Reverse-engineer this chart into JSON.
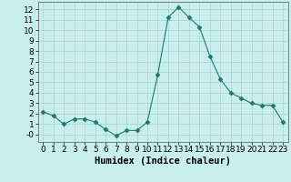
{
  "x": [
    0,
    1,
    2,
    3,
    4,
    5,
    6,
    7,
    8,
    9,
    10,
    11,
    12,
    13,
    14,
    15,
    16,
    17,
    18,
    19,
    20,
    21,
    22,
    23
  ],
  "y": [
    2.2,
    1.8,
    1.0,
    1.5,
    1.5,
    1.2,
    0.5,
    -0.1,
    0.4,
    0.4,
    1.2,
    5.7,
    11.2,
    12.2,
    11.2,
    10.3,
    7.5,
    5.3,
    4.0,
    3.5,
    3.0,
    2.8,
    2.8,
    1.2
  ],
  "xlabel": "Humidex (Indice chaleur)",
  "xlim": [
    -0.5,
    23.5
  ],
  "ylim": [
    -0.7,
    12.7
  ],
  "yticks": [
    0,
    1,
    2,
    3,
    4,
    5,
    6,
    7,
    8,
    9,
    10,
    11,
    12
  ],
  "ytick_labels": [
    "-0",
    "1",
    "2",
    "3",
    "4",
    "5",
    "6",
    "7",
    "8",
    "9",
    "10",
    "11",
    "12"
  ],
  "xticks": [
    0,
    1,
    2,
    3,
    4,
    5,
    6,
    7,
    8,
    9,
    10,
    11,
    12,
    13,
    14,
    15,
    16,
    17,
    18,
    19,
    20,
    21,
    22,
    23
  ],
  "line_color": "#1a7a6e",
  "marker": "D",
  "marker_size": 2.5,
  "bg_color": "#c8eeee",
  "grid_color": "#b0cccc",
  "xlabel_fontsize": 7.5,
  "tick_fontsize": 6.5
}
